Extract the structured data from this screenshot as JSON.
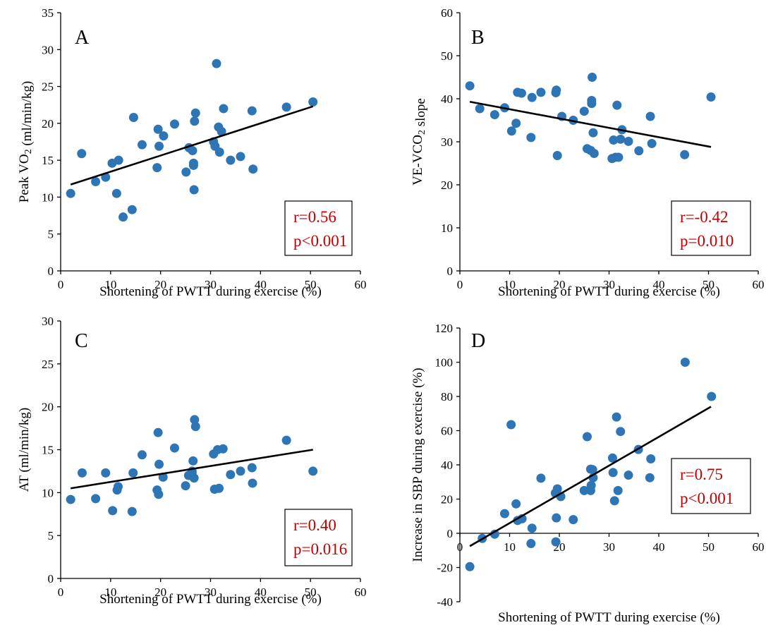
{
  "colors": {
    "points": "#2E75B6",
    "stats": "#C00000",
    "line": "#000000"
  },
  "chart_data": [
    {
      "type": "scatter",
      "panel": "A",
      "xlabel": "Shortening of PWTT during exercise (%)",
      "ylabel": "Peak VO2 (ml/min/kg)",
      "xlim": [
        0,
        60
      ],
      "ylim": [
        0,
        35
      ],
      "xticks": [
        0,
        10,
        20,
        30,
        40,
        50,
        60
      ],
      "yticks": [
        0,
        5,
        10,
        15,
        20,
        25,
        30,
        35
      ],
      "stat_r": "r=0.56",
      "stat_p": "p<0.001",
      "fit": {
        "x": [
          2,
          50.5
        ],
        "y": [
          11.7,
          22.3
        ]
      },
      "points": [
        [
          2,
          10.5
        ],
        [
          4.2,
          15.9
        ],
        [
          7,
          12.1
        ],
        [
          9,
          12.7
        ],
        [
          10.3,
          14.6
        ],
        [
          11.2,
          10.5
        ],
        [
          11.6,
          15
        ],
        [
          12.5,
          7.3
        ],
        [
          14.3,
          8.3
        ],
        [
          14.6,
          20.8
        ],
        [
          16.3,
          17.1
        ],
        [
          19.3,
          14
        ],
        [
          19.5,
          19.2
        ],
        [
          19.7,
          16.9
        ],
        [
          20.6,
          18.3
        ],
        [
          22.8,
          19.9
        ],
        [
          25.1,
          13.4
        ],
        [
          25.7,
          16.7
        ],
        [
          26.4,
          16.3
        ],
        [
          26.6,
          14.3
        ],
        [
          26.6,
          14.6
        ],
        [
          26.7,
          11
        ],
        [
          26.8,
          20.3
        ],
        [
          27,
          21.4
        ],
        [
          30.6,
          17.5
        ],
        [
          30.9,
          16.9
        ],
        [
          31.2,
          28.1
        ],
        [
          31.6,
          19.5
        ],
        [
          31.8,
          16.1
        ],
        [
          32.2,
          18.9
        ],
        [
          32.6,
          22
        ],
        [
          34,
          15
        ],
        [
          36,
          15.5
        ],
        [
          38.3,
          21.7
        ],
        [
          38.5,
          13.8
        ],
        [
          45.2,
          22.2
        ],
        [
          50.5,
          22.9
        ]
      ]
    },
    {
      "type": "scatter",
      "panel": "B",
      "xlabel": "Shortening of PWTT during exercise (%)",
      "ylabel": "VE-VCO2 slope",
      "xlim": [
        0,
        60
      ],
      "ylim": [
        0,
        60
      ],
      "xticks": [
        0,
        10,
        20,
        30,
        40,
        50,
        60
      ],
      "yticks": [
        0,
        10,
        20,
        30,
        40,
        50,
        60
      ],
      "stat_r": "r=-0.42",
      "stat_p": "p=0.010",
      "fit": {
        "x": [
          2,
          50.5
        ],
        "y": [
          39.3,
          28.8
        ]
      },
      "points": [
        [
          2,
          43
        ],
        [
          4,
          37.7
        ],
        [
          7,
          36.3
        ],
        [
          9,
          37.9
        ],
        [
          10.4,
          32.5
        ],
        [
          11.3,
          34.3
        ],
        [
          11.6,
          41.5
        ],
        [
          12.4,
          41.3
        ],
        [
          14.3,
          31
        ],
        [
          14.5,
          40.3
        ],
        [
          16.3,
          41.5
        ],
        [
          19.3,
          41.4
        ],
        [
          19.4,
          42
        ],
        [
          19.6,
          26.8
        ],
        [
          20.5,
          35.9
        ],
        [
          22.8,
          35
        ],
        [
          25,
          37.1
        ],
        [
          25.6,
          28.4
        ],
        [
          26.3,
          28
        ],
        [
          26.5,
          39.6
        ],
        [
          26.5,
          38.9
        ],
        [
          26.6,
          45
        ],
        [
          26.8,
          32.1
        ],
        [
          27,
          27.3
        ],
        [
          30.6,
          26.1
        ],
        [
          30.9,
          30.4
        ],
        [
          31.3,
          26.4
        ],
        [
          31.6,
          38.5
        ],
        [
          31.9,
          26.4
        ],
        [
          32.3,
          30.6
        ],
        [
          32.6,
          32.8
        ],
        [
          33.9,
          30.1
        ],
        [
          36,
          27.9
        ],
        [
          38.3,
          35.9
        ],
        [
          38.6,
          29.6
        ],
        [
          45.2,
          27
        ],
        [
          50.5,
          40.4
        ]
      ]
    },
    {
      "type": "scatter",
      "panel": "C",
      "xlabel": "Shortening of PWTT during exercise (%)",
      "ylabel": "AT (ml/min/kg)",
      "xlim": [
        0,
        60
      ],
      "ylim": [
        0,
        30
      ],
      "xticks": [
        0,
        10,
        20,
        30,
        40,
        50,
        60
      ],
      "yticks": [
        0,
        5,
        10,
        15,
        20,
        25,
        30
      ],
      "stat_r": "r=0.40",
      "stat_p": "p=0.016",
      "fit": {
        "x": [
          2,
          50.5
        ],
        "y": [
          10.5,
          15
        ]
      },
      "points": [
        [
          2,
          9.2
        ],
        [
          4.3,
          12.3
        ],
        [
          7,
          9.3
        ],
        [
          9,
          12.3
        ],
        [
          10.4,
          7.9
        ],
        [
          11.3,
          10.3
        ],
        [
          11.5,
          10.7
        ],
        [
          14.3,
          7.8
        ],
        [
          14.5,
          12.3
        ],
        [
          16.3,
          14.4
        ],
        [
          19.3,
          10.3
        ],
        [
          19.5,
          17
        ],
        [
          19.6,
          9.8
        ],
        [
          19.7,
          13.3
        ],
        [
          20.5,
          11.8
        ],
        [
          22.8,
          15.2
        ],
        [
          25,
          10.8
        ],
        [
          25.6,
          12
        ],
        [
          26.3,
          12.3
        ],
        [
          26.3,
          12.5
        ],
        [
          26.5,
          13.7
        ],
        [
          26.7,
          11.7
        ],
        [
          26.8,
          18.5
        ],
        [
          27,
          17.7
        ],
        [
          30.6,
          14.5
        ],
        [
          30.8,
          10.4
        ],
        [
          31.4,
          15
        ],
        [
          31.7,
          10.5
        ],
        [
          32.5,
          15.1
        ],
        [
          34,
          12.1
        ],
        [
          36,
          12.5
        ],
        [
          38.3,
          12.9
        ],
        [
          38.4,
          11.1
        ],
        [
          45.2,
          16.1
        ],
        [
          50.5,
          12.5
        ]
      ]
    },
    {
      "type": "scatter",
      "panel": "D",
      "xlabel": "Shortening of PWTT during exercise (%)",
      "ylabel": "Increase in SBP during exercise (%)",
      "xlim": [
        0,
        60
      ],
      "ylim": [
        -40,
        120
      ],
      "xticks": [
        0,
        10,
        20,
        30,
        40,
        50,
        60
      ],
      "yticks": [
        -40,
        -20,
        0,
        20,
        40,
        60,
        80,
        100,
        120
      ],
      "stat_r": "r=0.75",
      "stat_p": "p<0.001",
      "fit": {
        "x": [
          2,
          50.5
        ],
        "y": [
          -7.5,
          74
        ]
      },
      "points": [
        [
          2,
          -19.5
        ],
        [
          4.5,
          -3
        ],
        [
          7,
          -0.5
        ],
        [
          9,
          11.5
        ],
        [
          10.3,
          63.5
        ],
        [
          11.3,
          17.2
        ],
        [
          11.6,
          7.5
        ],
        [
          12.5,
          8.5
        ],
        [
          14.3,
          -6
        ],
        [
          14.5,
          3
        ],
        [
          16.3,
          32.2
        ],
        [
          19.2,
          23.5
        ],
        [
          19.3,
          -5
        ],
        [
          19.4,
          9
        ],
        [
          19.6,
          26
        ],
        [
          20.3,
          21.5
        ],
        [
          22.8,
          8
        ],
        [
          25,
          25
        ],
        [
          25.6,
          56.5
        ],
        [
          26.3,
          37.5
        ],
        [
          26.3,
          25
        ],
        [
          26.4,
          28
        ],
        [
          26.7,
          37.2
        ],
        [
          26.8,
          32.5
        ],
        [
          30.7,
          44
        ],
        [
          30.8,
          35.5
        ],
        [
          31.1,
          19
        ],
        [
          31.5,
          68
        ],
        [
          31.8,
          25
        ],
        [
          32.3,
          59.5
        ],
        [
          33.9,
          34
        ],
        [
          35.9,
          49
        ],
        [
          38.2,
          32.5
        ],
        [
          38.4,
          43.5
        ],
        [
          45.3,
          100
        ],
        [
          50.6,
          80
        ]
      ]
    }
  ]
}
